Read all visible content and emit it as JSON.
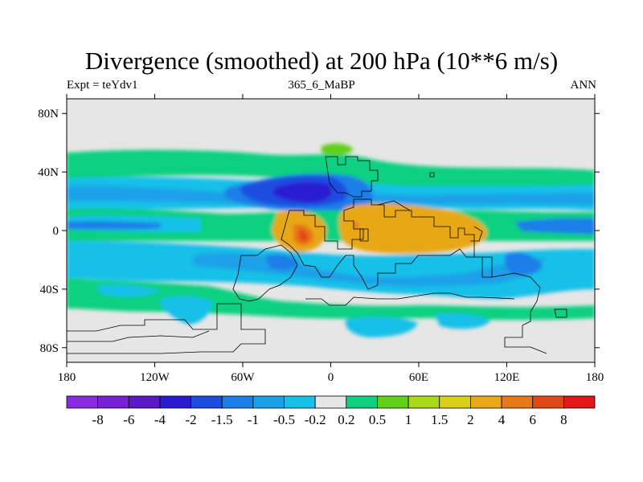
{
  "title": "Divergence (smoothed) at 200 hPa (10**6 m/s)",
  "left_label": "Expt = teYdv1",
  "center_label": "365_6_MaBP",
  "right_label": "ANN",
  "map": {
    "projection": "cylindrical-equidistant",
    "lon_range": [
      -180,
      180
    ],
    "lat_range": [
      -90,
      90
    ],
    "x_ticks": [
      {
        "value": -180,
        "label": "180"
      },
      {
        "value": -120,
        "label": "120W"
      },
      {
        "value": -60,
        "label": "60W"
      },
      {
        "value": 0,
        "label": "0"
      },
      {
        "value": 60,
        "label": "60E"
      },
      {
        "value": 120,
        "label": "120E"
      },
      {
        "value": 180,
        "label": "180"
      }
    ],
    "y_ticks": [
      {
        "value": 80,
        "label": "80N"
      },
      {
        "value": 40,
        "label": "40N"
      },
      {
        "value": 0,
        "label": "0"
      },
      {
        "value": -40,
        "label": "40S"
      },
      {
        "value": -80,
        "label": "80S"
      }
    ]
  },
  "colorbar": {
    "colors": [
      "#8a2be2",
      "#7a1fd8",
      "#5a18c8",
      "#2a1ad0",
      "#1a4ee0",
      "#1c7ee8",
      "#1aa0e8",
      "#18c0e8",
      "#e6e6e6",
      "#10d080",
      "#60d018",
      "#a8d818",
      "#d8d018",
      "#e8a818",
      "#e87818",
      "#e04818",
      "#e01818"
    ],
    "labels": [
      "-8",
      "-6",
      "-4",
      "-2",
      "-1.5",
      "-1",
      "-0.5",
      "-0.2",
      "0.2",
      "0.5",
      "1",
      "1.5",
      "2",
      "4",
      "6",
      "8"
    ]
  },
  "field_colors": {
    "neutral": "#e6e6e6",
    "green": "#10d080",
    "lightgreen": "#60d018",
    "cyan": "#18c0e8",
    "midblue": "#1aa0e8",
    "blue": "#1c7ee8",
    "royal": "#1a4ee0",
    "navy": "#2a1ad0",
    "orange": "#e8a818",
    "darkorange": "#e87818",
    "red": "#e04818",
    "yellow": "#d8d018"
  }
}
